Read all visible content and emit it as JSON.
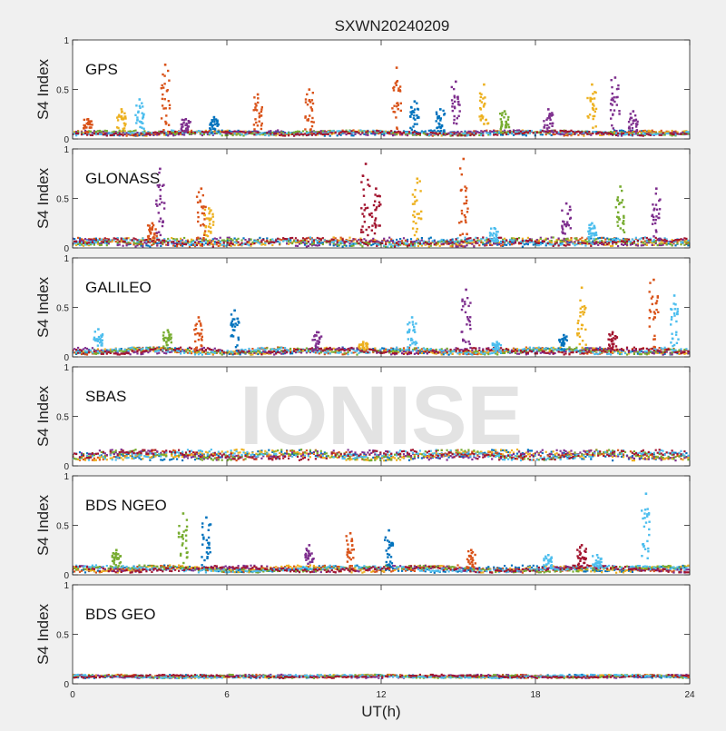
{
  "figure": {
    "title": "SXWN20240209",
    "xlabel": "UT(h)",
    "watermark": "IONISE"
  },
  "chart_data": {
    "type": "scatter",
    "title": "SXWN20240209",
    "xlabel": "UT(h)",
    "ylabel": "S4 Index",
    "xlim": [
      0,
      24
    ],
    "xticks": [
      0,
      6,
      12,
      18,
      24
    ],
    "ylim": [
      0,
      1
    ],
    "yticks": [
      0,
      0.5,
      1
    ],
    "grid": false,
    "panels": [
      {
        "label": "GPS",
        "baseline": 0.06,
        "baseline_spread": 0.03,
        "spikes": [
          {
            "x": 0.6,
            "peak": 0.2,
            "color": "#D95319"
          },
          {
            "x": 1.9,
            "peak": 0.3,
            "color": "#EDB120"
          },
          {
            "x": 2.6,
            "peak": 0.4,
            "color": "#4DBEEE"
          },
          {
            "x": 3.6,
            "peak": 0.75,
            "color": "#D95319"
          },
          {
            "x": 4.4,
            "peak": 0.2,
            "color": "#7E2F8E"
          },
          {
            "x": 5.5,
            "peak": 0.22,
            "color": "#0072BD"
          },
          {
            "x": 7.2,
            "peak": 0.45,
            "color": "#D95319"
          },
          {
            "x": 9.2,
            "peak": 0.5,
            "color": "#D95319"
          },
          {
            "x": 12.6,
            "peak": 0.72,
            "color": "#D95319"
          },
          {
            "x": 13.3,
            "peak": 0.38,
            "color": "#0072BD"
          },
          {
            "x": 14.3,
            "peak": 0.3,
            "color": "#0072BD"
          },
          {
            "x": 14.9,
            "peak": 0.58,
            "color": "#7E2F8E"
          },
          {
            "x": 16.0,
            "peak": 0.55,
            "color": "#EDB120"
          },
          {
            "x": 16.8,
            "peak": 0.28,
            "color": "#77AC30"
          },
          {
            "x": 18.5,
            "peak": 0.3,
            "color": "#7E2F8E"
          },
          {
            "x": 20.2,
            "peak": 0.55,
            "color": "#EDB120"
          },
          {
            "x": 21.1,
            "peak": 0.62,
            "color": "#7E2F8E"
          },
          {
            "x": 21.8,
            "peak": 0.28,
            "color": "#7E2F8E"
          }
        ]
      },
      {
        "label": "GLONASS",
        "baseline": 0.06,
        "baseline_spread": 0.05,
        "spikes": [
          {
            "x": 3.1,
            "peak": 0.25,
            "color": "#D95319"
          },
          {
            "x": 3.4,
            "peak": 0.8,
            "color": "#7E2F8E"
          },
          {
            "x": 5.0,
            "peak": 0.6,
            "color": "#D95319"
          },
          {
            "x": 5.3,
            "peak": 0.4,
            "color": "#EDB120"
          },
          {
            "x": 11.4,
            "peak": 0.85,
            "color": "#A2142F"
          },
          {
            "x": 11.8,
            "peak": 0.6,
            "color": "#A2142F"
          },
          {
            "x": 13.4,
            "peak": 0.7,
            "color": "#EDB120"
          },
          {
            "x": 15.2,
            "peak": 0.9,
            "color": "#D95319"
          },
          {
            "x": 16.4,
            "peak": 0.2,
            "color": "#4DBEEE"
          },
          {
            "x": 19.2,
            "peak": 0.45,
            "color": "#7E2F8E"
          },
          {
            "x": 20.2,
            "peak": 0.25,
            "color": "#4DBEEE"
          },
          {
            "x": 21.3,
            "peak": 0.62,
            "color": "#77AC30"
          },
          {
            "x": 22.7,
            "peak": 0.6,
            "color": "#7E2F8E"
          }
        ]
      },
      {
        "label": "GALILEO",
        "baseline": 0.06,
        "baseline_spread": 0.04,
        "spikes": [
          {
            "x": 1.0,
            "peak": 0.28,
            "color": "#4DBEEE"
          },
          {
            "x": 3.7,
            "peak": 0.27,
            "color": "#77AC30"
          },
          {
            "x": 4.9,
            "peak": 0.4,
            "color": "#D95319"
          },
          {
            "x": 6.3,
            "peak": 0.47,
            "color": "#0072BD"
          },
          {
            "x": 9.5,
            "peak": 0.25,
            "color": "#7E2F8E"
          },
          {
            "x": 11.3,
            "peak": 0.15,
            "color": "#EDB120"
          },
          {
            "x": 13.2,
            "peak": 0.4,
            "color": "#4DBEEE"
          },
          {
            "x": 15.3,
            "peak": 0.68,
            "color": "#7E2F8E"
          },
          {
            "x": 16.5,
            "peak": 0.15,
            "color": "#4DBEEE"
          },
          {
            "x": 19.1,
            "peak": 0.22,
            "color": "#0072BD"
          },
          {
            "x": 19.8,
            "peak": 0.7,
            "color": "#EDB120"
          },
          {
            "x": 21.0,
            "peak": 0.25,
            "color": "#A2142F"
          },
          {
            "x": 22.6,
            "peak": 0.78,
            "color": "#D95319"
          },
          {
            "x": 23.4,
            "peak": 0.62,
            "color": "#4DBEEE"
          }
        ]
      },
      {
        "label": "SBAS",
        "baseline": 0.11,
        "baseline_spread": 0.06,
        "spikes": []
      },
      {
        "label": "BDS NGEO",
        "baseline": 0.06,
        "baseline_spread": 0.04,
        "spikes": [
          {
            "x": 1.7,
            "peak": 0.25,
            "color": "#77AC30"
          },
          {
            "x": 4.3,
            "peak": 0.62,
            "color": "#77AC30"
          },
          {
            "x": 5.2,
            "peak": 0.58,
            "color": "#0072BD"
          },
          {
            "x": 9.2,
            "peak": 0.3,
            "color": "#7E2F8E"
          },
          {
            "x": 10.8,
            "peak": 0.42,
            "color": "#D95319"
          },
          {
            "x": 12.3,
            "peak": 0.45,
            "color": "#0072BD"
          },
          {
            "x": 15.5,
            "peak": 0.25,
            "color": "#D95319"
          },
          {
            "x": 18.5,
            "peak": 0.2,
            "color": "#4DBEEE"
          },
          {
            "x": 19.8,
            "peak": 0.3,
            "color": "#A2142F"
          },
          {
            "x": 20.4,
            "peak": 0.2,
            "color": "#4DBEEE"
          },
          {
            "x": 22.3,
            "peak": 0.82,
            "color": "#4DBEEE"
          }
        ]
      },
      {
        "label": "BDS GEO",
        "baseline": 0.075,
        "baseline_spread": 0.02,
        "spikes": []
      }
    ],
    "series_colors": [
      "#0072BD",
      "#D95319",
      "#EDB120",
      "#7E2F8E",
      "#77AC30",
      "#4DBEEE",
      "#A2142F"
    ]
  }
}
